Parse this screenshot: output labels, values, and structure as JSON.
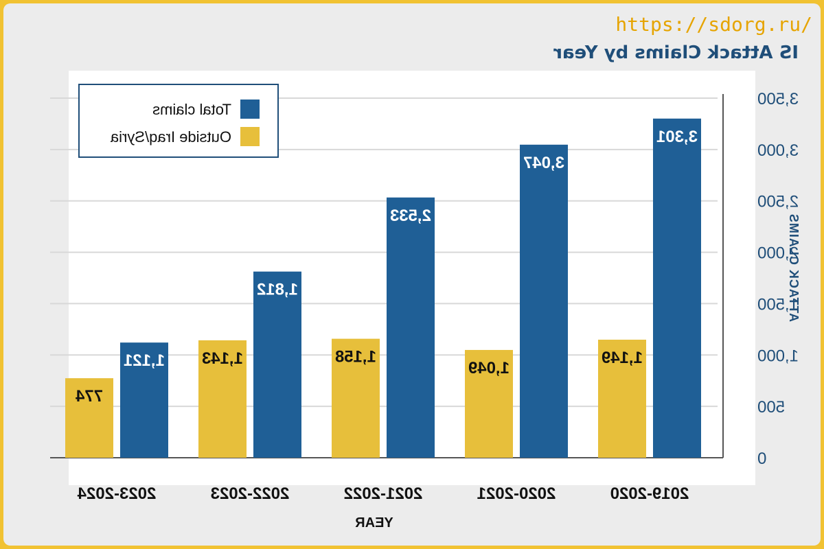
{
  "watermark": "https://sdorg.ru/",
  "colors": {
    "total": "#1f5f96",
    "outside": "#e7bf3b",
    "grid": "#d8d8d8",
    "axis": "#555555",
    "frame": "#f1c232"
  },
  "chart_data": {
    "type": "bar",
    "title": "IS Attack Claims by Year",
    "xlabel": "YEAR",
    "ylabel": "ATTACK CLAIMS",
    "categories": [
      "2019-2020",
      "2020-2021",
      "2021-2022",
      "2022-2023",
      "2023-2024"
    ],
    "series": [
      {
        "name": "Total claims",
        "values": [
          3301,
          3047,
          2533,
          1812,
          1121
        ],
        "labels": [
          "3,301",
          "3,047",
          "2,533",
          "1,812",
          "1,121"
        ]
      },
      {
        "name": "Outside Iraq/Syria",
        "values": [
          1149,
          1049,
          1158,
          1143,
          774
        ],
        "labels": [
          "1,149",
          "1,049",
          "1,158",
          "1,143",
          "774"
        ]
      }
    ],
    "ylim": [
      0,
      3500
    ],
    "yticks": [
      0,
      500,
      1000,
      1500,
      2000,
      2500,
      3000,
      3500
    ],
    "ytick_labels": [
      "0",
      "500",
      "1,000",
      "1,500",
      "2,000",
      "2,500",
      "3,000",
      "3,500"
    ],
    "mirrored": true,
    "grid": true,
    "legend_position": "top-left"
  }
}
